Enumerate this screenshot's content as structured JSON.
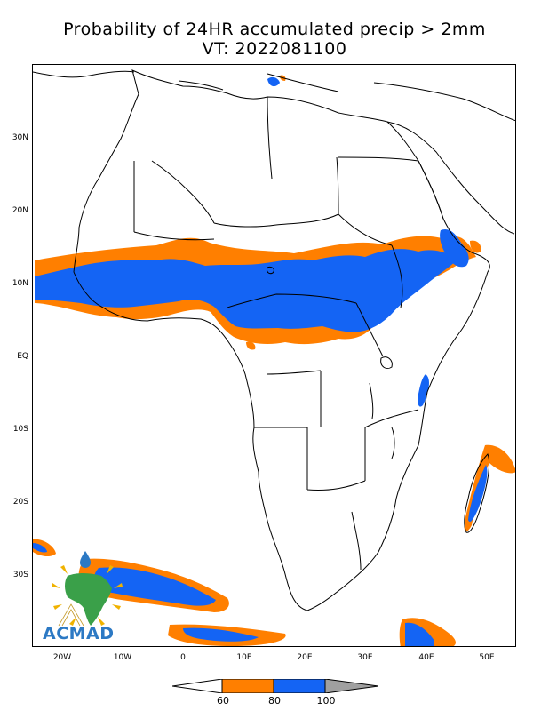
{
  "header": {
    "title": "Probability of 24HR accumulated precip > 2mm",
    "valid_time": "VT: 2022081100"
  },
  "map": {
    "y_axis_labels": [
      "30N",
      "20N",
      "10N",
      "EQ",
      "10S",
      "20S",
      "30S"
    ],
    "x_axis_labels": [
      "20W",
      "10W",
      "0",
      "10E",
      "20E",
      "30E",
      "40E",
      "50E"
    ],
    "lat_range": [
      -40,
      40
    ],
    "lon_range": [
      -25,
      55
    ]
  },
  "legend": {
    "tick_labels": [
      "60",
      "80",
      "100"
    ],
    "colors": {
      "below_60": "#ffffff",
      "p60_80": "#ff7f00",
      "p80_100": "#1464f4",
      "above_100": "#a0a0a0"
    }
  },
  "logo": {
    "text": "ACMAD",
    "colors": {
      "text": "#2c79c4",
      "africa": "#3aa049",
      "drop": "#2c79c4",
      "rays": "#f0b200"
    }
  }
}
